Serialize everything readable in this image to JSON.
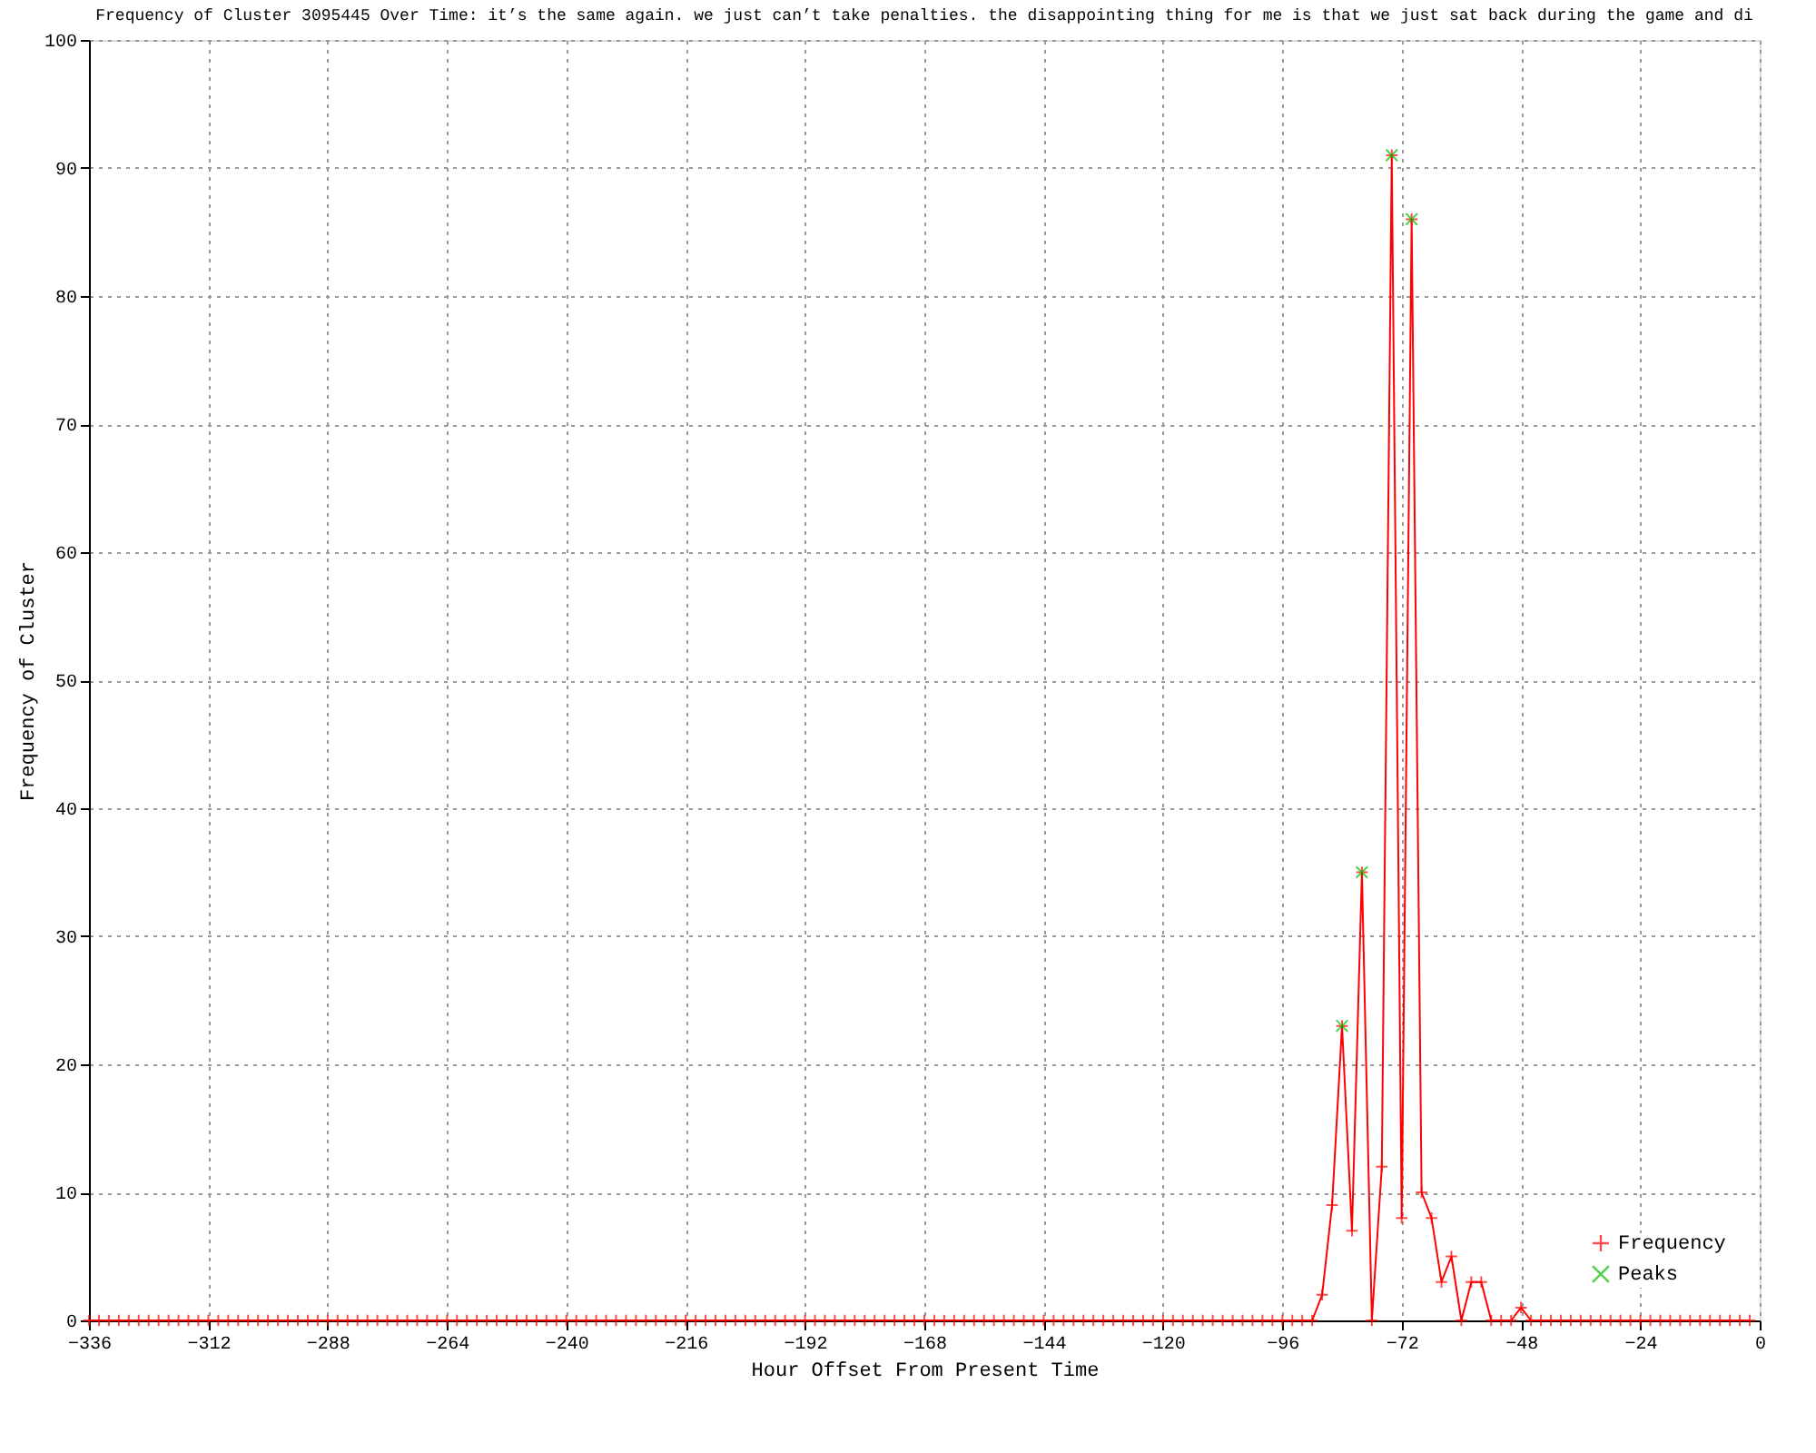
{
  "chart_data": {
    "type": "line",
    "title": "Frequency of Cluster 3095445 Over Time: it’s the same again. we just can’t take penalties. the disappointing thing for me is that we just sat back during the game and di",
    "xlabel": "Hour Offset From Present Time",
    "ylabel": "Frequency of Cluster",
    "series": [
      {
        "name": "Frequency",
        "type": "line",
        "marker": "cross",
        "color": "#ff0000",
        "x": [
          -336,
          -334,
          -332,
          -330,
          -328,
          -326,
          -324,
          -322,
          -320,
          -318,
          -316,
          -314,
          -312,
          -310,
          -308,
          -306,
          -304,
          -302,
          -300,
          -298,
          -296,
          -294,
          -292,
          -290,
          -288,
          -286,
          -284,
          -282,
          -280,
          -278,
          -276,
          -274,
          -272,
          -270,
          -268,
          -266,
          -264,
          -262,
          -260,
          -258,
          -256,
          -254,
          -252,
          -250,
          -248,
          -246,
          -244,
          -242,
          -240,
          -238,
          -236,
          -234,
          -232,
          -230,
          -228,
          -226,
          -224,
          -222,
          -220,
          -218,
          -216,
          -214,
          -212,
          -210,
          -208,
          -206,
          -204,
          -202,
          -200,
          -198,
          -196,
          -194,
          -192,
          -190,
          -188,
          -186,
          -184,
          -182,
          -180,
          -178,
          -176,
          -174,
          -172,
          -170,
          -168,
          -166,
          -164,
          -162,
          -160,
          -158,
          -156,
          -154,
          -152,
          -150,
          -148,
          -146,
          -144,
          -142,
          -140,
          -138,
          -136,
          -134,
          -132,
          -130,
          -128,
          -126,
          -124,
          -122,
          -120,
          -118,
          -116,
          -114,
          -112,
          -110,
          -108,
          -106,
          -104,
          -102,
          -100,
          -98,
          -96,
          -94,
          -92,
          -90,
          -88,
          -86,
          -84,
          -82,
          -80,
          -78,
          -76,
          -74,
          -72,
          -70,
          -68,
          -66,
          -64,
          -62,
          -60,
          -58,
          -56,
          -54,
          -52,
          -50,
          -48,
          -46,
          -44,
          -42,
          -40,
          -38,
          -36,
          -34,
          -32,
          -30,
          -28,
          -26,
          -24,
          -22,
          -20,
          -18,
          -16,
          -14,
          -12,
          -10,
          -8,
          -6,
          -4,
          -2
        ],
        "values": [
          0,
          0,
          0,
          0,
          0,
          0,
          0,
          0,
          0,
          0,
          0,
          0,
          0,
          0,
          0,
          0,
          0,
          0,
          0,
          0,
          0,
          0,
          0,
          0,
          0,
          0,
          0,
          0,
          0,
          0,
          0,
          0,
          0,
          0,
          0,
          0,
          0,
          0,
          0,
          0,
          0,
          0,
          0,
          0,
          0,
          0,
          0,
          0,
          0,
          0,
          0,
          0,
          0,
          0,
          0,
          0,
          0,
          0,
          0,
          0,
          0,
          0,
          0,
          0,
          0,
          0,
          0,
          0,
          0,
          0,
          0,
          0,
          0,
          0,
          0,
          0,
          0,
          0,
          0,
          0,
          0,
          0,
          0,
          0,
          0,
          0,
          0,
          0,
          0,
          0,
          0,
          0,
          0,
          0,
          0,
          0,
          0,
          0,
          0,
          0,
          0,
          0,
          0,
          0,
          0,
          0,
          0,
          0,
          0,
          0,
          0,
          0,
          0,
          0,
          0,
          0,
          0,
          0,
          0,
          0,
          0,
          0,
          0,
          0,
          2,
          9,
          23,
          7,
          35,
          0,
          12,
          91,
          8,
          86,
          10,
          8,
          3,
          5,
          0,
          3,
          3,
          0,
          0,
          0,
          1,
          0,
          0,
          0,
          0,
          0,
          0,
          0,
          0,
          0,
          0,
          0,
          0,
          0,
          0,
          0,
          0,
          0,
          0,
          0,
          0,
          0,
          0,
          0
        ]
      },
      {
        "name": "Peaks",
        "type": "scatter",
        "marker": "cross",
        "color": "#00c000",
        "x": [
          -84,
          -80,
          -74,
          -70
        ],
        "values": [
          23,
          35,
          91,
          86
        ]
      }
    ],
    "xlim": [
      -336,
      0
    ],
    "xticks": [
      -336,
      -312,
      -288,
      -264,
      -240,
      -216,
      -192,
      -168,
      -144,
      -120,
      -96,
      -72,
      -48,
      -24,
      0
    ],
    "ylim": [
      0,
      100
    ],
    "yticks": [
      0,
      10,
      20,
      30,
      40,
      50,
      60,
      70,
      80,
      90,
      100
    ],
    "grid": true,
    "legend": "bottom right"
  }
}
